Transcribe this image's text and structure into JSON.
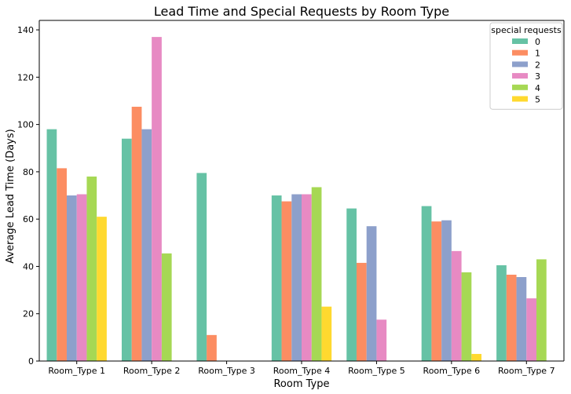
{
  "chart_data": {
    "type": "bar",
    "title": "Lead Time and Special Requests by Room Type",
    "xlabel": "Room Type",
    "ylabel": "Average Lead Time (Days)",
    "ylim": [
      0,
      144
    ],
    "yticks": [
      0,
      20,
      40,
      60,
      80,
      100,
      120,
      140
    ],
    "grid": false,
    "legend": {
      "title": "special requests",
      "placement": "top-right"
    },
    "categories": [
      "Room_Type 1",
      "Room_Type 2",
      "Room_Type 3",
      "Room_Type 4",
      "Room_Type 5",
      "Room_Type 6",
      "Room_Type 7"
    ],
    "series": [
      {
        "name": "0",
        "color": "#66c2a5",
        "values": [
          98,
          94,
          79.5,
          70,
          64.5,
          65.5,
          40.5
        ]
      },
      {
        "name": "1",
        "color": "#fc8d62",
        "values": [
          81.5,
          107.5,
          11,
          67.5,
          41.5,
          59,
          36.5
        ]
      },
      {
        "name": "2",
        "color": "#8da0cb",
        "values": [
          70,
          98,
          null,
          70.5,
          57,
          59.5,
          35.5
        ]
      },
      {
        "name": "3",
        "color": "#e78ac3",
        "values": [
          70.5,
          137,
          null,
          70.5,
          17.5,
          46.5,
          26.5
        ]
      },
      {
        "name": "4",
        "color": "#a6d854",
        "values": [
          78,
          45.5,
          null,
          73.5,
          null,
          37.5,
          43
        ]
      },
      {
        "name": "5",
        "color": "#ffd92f",
        "values": [
          61,
          null,
          null,
          23,
          null,
          3,
          null
        ]
      }
    ]
  }
}
